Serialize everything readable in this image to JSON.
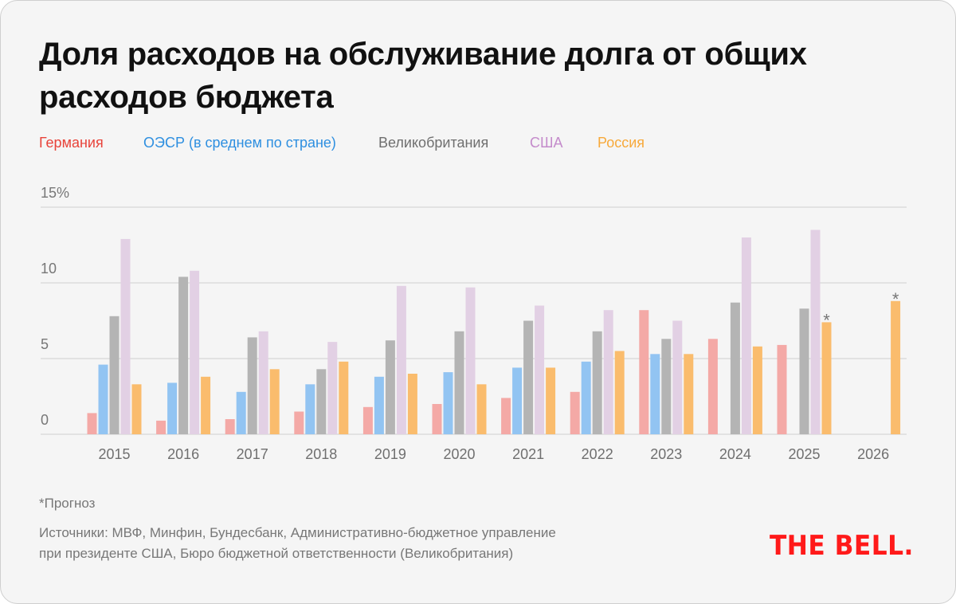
{
  "title": "Доля расходов на обслуживание долга от общих расходов бюджета",
  "title_lines": [
    "Доля расходов на обслуживание долга от общих",
    "расходов бюджета"
  ],
  "legend": [
    {
      "label": "Германия",
      "color": "#e8433a"
    },
    {
      "label": "ОЭСР (в среднем по стране)",
      "color": "#2e8fe0"
    },
    {
      "label": "Великобритания",
      "color": "#6f6f6f"
    },
    {
      "label": "США",
      "color": "#c48bcb"
    },
    {
      "label": "Россия",
      "color": "#f7a93a"
    }
  ],
  "footnote": "*Прогноз",
  "sources_lines": [
    "Источники: МВФ, Минфин, Бундесбанк, Административно-бюджетное управление",
    "при президенте США, Бюро бюджетной ответственности (Великобритания)"
  ],
  "logo": "THE BELL.",
  "chart_data": {
    "type": "bar",
    "title": "Доля расходов на обслуживание долга от общих расходов бюджета",
    "xlabel": "",
    "ylabel": "%",
    "ylim": [
      0,
      15
    ],
    "yticks": [
      0,
      5,
      10,
      15
    ],
    "ytick_labels": [
      "0",
      "5",
      "10",
      "15%"
    ],
    "grid": true,
    "legend_position": "top-left",
    "categories": [
      "2015",
      "2016",
      "2017",
      "2018",
      "2019",
      "2020",
      "2021",
      "2022",
      "2023",
      "2024",
      "2025",
      "2026"
    ],
    "series": [
      {
        "name": "Германия",
        "bar_color": "#f4a9a6",
        "values": [
          1.4,
          0.9,
          1.0,
          1.5,
          1.8,
          2.0,
          2.4,
          2.8,
          8.2,
          6.3,
          5.9,
          null
        ]
      },
      {
        "name": "ОЭСР (в среднем по стране)",
        "bar_color": "#92c4f2",
        "values": [
          4.6,
          3.4,
          2.8,
          3.3,
          3.8,
          4.1,
          4.4,
          4.8,
          5.3,
          null,
          null,
          null
        ]
      },
      {
        "name": "Великобритания",
        "bar_color": "#b4b4b4",
        "values": [
          7.8,
          10.4,
          6.4,
          4.3,
          6.2,
          6.8,
          7.5,
          6.8,
          6.3,
          8.7,
          8.3,
          null
        ]
      },
      {
        "name": "США",
        "bar_color": "#e2d0e4",
        "values": [
          12.9,
          10.8,
          6.8,
          6.1,
          9.8,
          9.7,
          8.5,
          8.2,
          7.5,
          13.0,
          13.5,
          null
        ]
      },
      {
        "name": "Россия",
        "bar_color": "#fabc6d",
        "values": [
          3.3,
          3.8,
          4.3,
          4.8,
          4.0,
          3.3,
          4.4,
          5.5,
          5.3,
          5.8,
          7.4,
          8.8
        ]
      }
    ],
    "annotations": [
      {
        "series": "Россия",
        "category": "2025",
        "text": "*"
      },
      {
        "series": "Россия",
        "category": "2026",
        "text": "*"
      }
    ]
  }
}
